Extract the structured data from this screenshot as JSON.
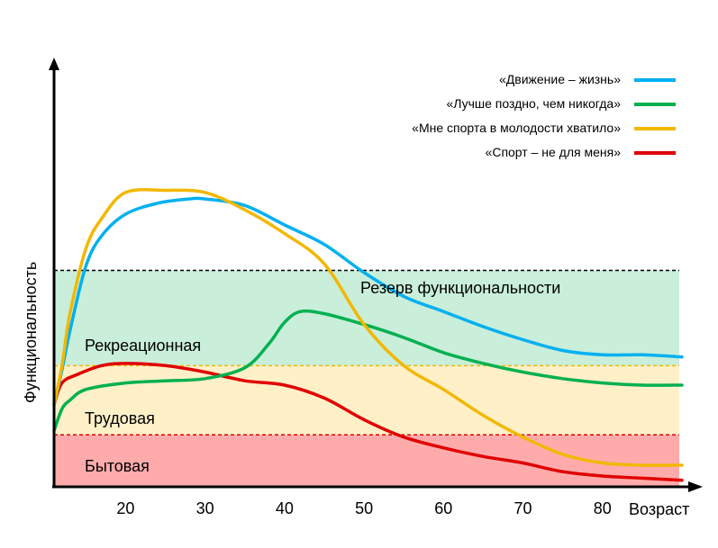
{
  "chart_data": {
    "type": "line",
    "title": "",
    "xlabel": "Возраст",
    "ylabel": "Функциональность",
    "xlim": [
      11,
      90
    ],
    "ylim": [
      0,
      100
    ],
    "xticks": [
      20,
      30,
      40,
      50,
      60,
      70,
      80
    ],
    "grid": false,
    "legend_position": "top-right",
    "zones": [
      {
        "name": "Бытовая",
        "from": 0,
        "to": 12,
        "color": "#ffabab",
        "line_color": "#e00000"
      },
      {
        "name": "Трудовая",
        "from": 12,
        "to": 28,
        "color": "#fff0c8",
        "line_color": "#f2b800"
      },
      {
        "name": "Рекреационная",
        "from": 28,
        "to": 50,
        "color": "#c9eed9",
        "line_color": "#000000"
      }
    ],
    "reserve_label": "Резерв функциональности",
    "series": [
      {
        "name": "«Движение – жизнь»",
        "color": "#00b0f0",
        "x": [
          11,
          12,
          13,
          15,
          17,
          20,
          24,
          28,
          30,
          35,
          40,
          45,
          50,
          55,
          60,
          65,
          70,
          75,
          80,
          85,
          90
        ],
        "y": [
          19,
          27,
          36,
          51,
          58,
          63,
          65.5,
          66.5,
          66.5,
          65,
          60.5,
          56,
          49.5,
          44,
          40.5,
          37,
          34,
          31.5,
          30.5,
          30.5,
          30
        ]
      },
      {
        "name": "«Лучше поздно, чем никогда»",
        "color": "#00b050",
        "x": [
          11,
          12,
          13,
          15,
          20,
          25,
          30,
          35,
          38,
          40,
          42,
          45,
          50,
          55,
          60,
          65,
          70,
          75,
          80,
          85,
          90
        ],
        "y": [
          13,
          18,
          20,
          22.5,
          24,
          24.5,
          25,
          27.5,
          33,
          38,
          40.5,
          40,
          37.5,
          34.5,
          31,
          28.5,
          26.5,
          25,
          24,
          23.5,
          23.5
        ]
      },
      {
        "name": "«Мне спорта в молодости хватило»",
        "color": "#f2b800",
        "x": [
          11,
          12,
          13,
          15,
          17,
          20,
          25,
          30,
          35,
          40,
          45,
          50,
          55,
          60,
          65,
          70,
          75,
          80,
          85,
          90
        ],
        "y": [
          19,
          28,
          40,
          55,
          62,
          68,
          68.5,
          68,
          64,
          58.5,
          51.5,
          37.5,
          28,
          22.5,
          16.5,
          11.5,
          7.5,
          5.5,
          5,
          5
        ]
      },
      {
        "name": "«Спорт – не для меня»",
        "color": "#e00000",
        "x": [
          11,
          12,
          14,
          17,
          20,
          25,
          30,
          35,
          40,
          45,
          50,
          55,
          60,
          65,
          70,
          75,
          80,
          85,
          90
        ],
        "y": [
          19,
          24,
          26,
          28,
          28.5,
          28,
          26.5,
          24.5,
          23.5,
          20.5,
          15.5,
          11.5,
          9,
          7,
          5.5,
          3.5,
          2.5,
          2,
          1.5
        ]
      }
    ]
  }
}
